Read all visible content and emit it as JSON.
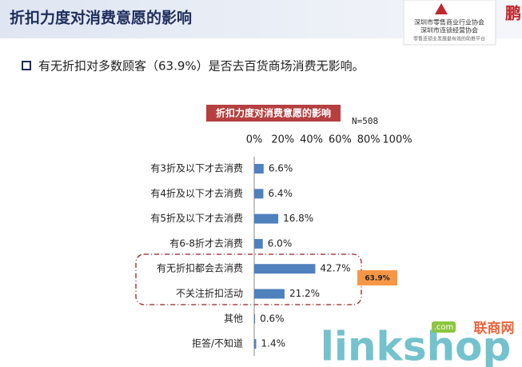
{
  "slide_title": "折扣力度对消费意愿的影响",
  "bullet": "有无折扣对多数顾客（63.9%）是否去百货商场消费无影响。",
  "branding": {
    "org_1": "深圳市零售商业行业协会",
    "org_2": "深圳市连锁经营协会",
    "slogan": "零售连锁业发展最有效的助推平台",
    "watermark": "linkshop",
    "watermark_cn": "联商网",
    "watermark_com": ".com"
  },
  "chart_data": {
    "type": "hbar",
    "title": "折扣力度对消费意愿的影响",
    "annotation": "N=508",
    "callout": "63.9%",
    "categories": [
      "有3折及以下才去消费",
      "有4折及以下才去消费",
      "有5折及以下才去消费",
      "有6-8折才去消费",
      "有无折扣都会去消费",
      "不关注折扣活动",
      "其他",
      "拒答/不知道"
    ],
    "values": [
      6.6,
      6.4,
      16.8,
      6.0,
      42.7,
      21.2,
      0.6,
      1.4
    ],
    "value_labels": [
      "6.6%",
      "6.4%",
      "16.8%",
      "6.0%",
      "42.7%",
      "21.2%",
      "0.6%",
      "1.4%"
    ],
    "color": "#4f81bd",
    "xlim": [
      0,
      100
    ],
    "xticks": [
      {
        "value": 0,
        "label": "0%"
      },
      {
        "value": 20,
        "label": "20%"
      },
      {
        "value": 40,
        "label": "40%"
      },
      {
        "value": 60,
        "label": "60%"
      },
      {
        "value": 80,
        "label": "80%"
      },
      {
        "value": 100,
        "label": "100%"
      }
    ]
  }
}
